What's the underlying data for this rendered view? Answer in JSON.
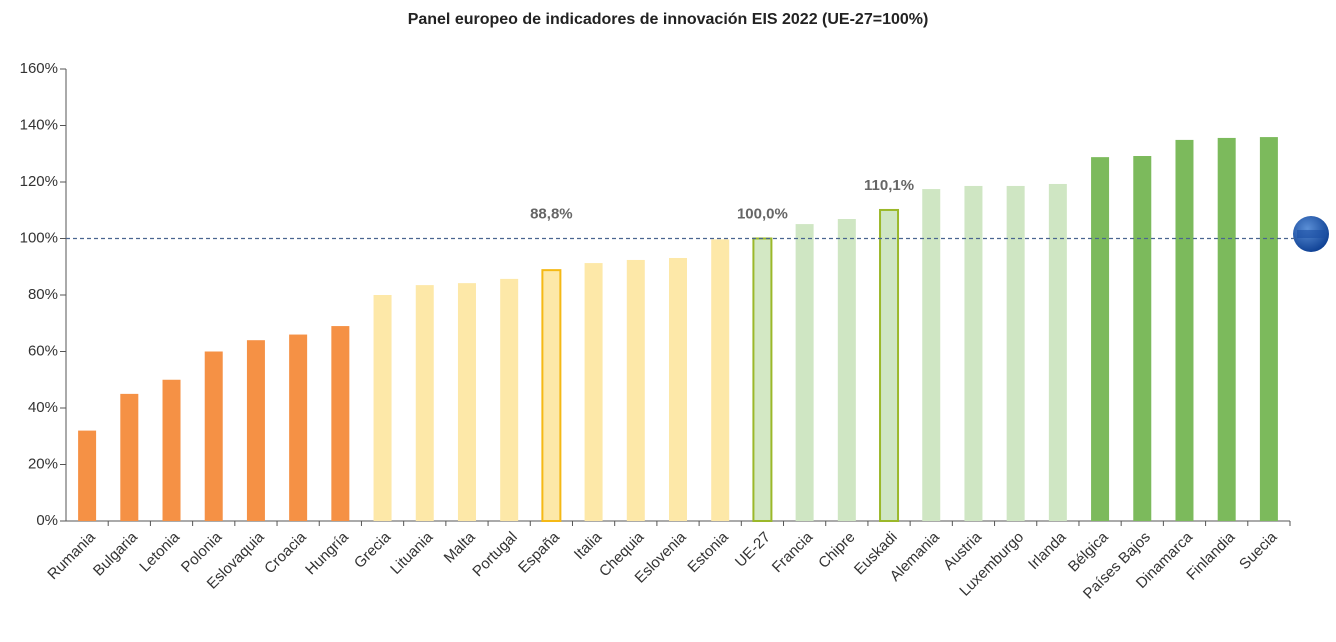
{
  "chart_data": {
    "type": "bar",
    "title": "Panel europeo de indicadores de innovación EIS 2022 (UE-27=100%)",
    "categories": [
      "Rumania",
      "Bulgaria",
      "Letonia",
      "Polonia",
      "Eslovaquia",
      "Croacia",
      "Hungría",
      "Grecia",
      "Lituania",
      "Malta",
      "Portugal",
      "España",
      "Italia",
      "Chequia",
      "Eslovenia",
      "Estonia",
      "UE-27",
      "Francia",
      "Chipre",
      "Euskadi",
      "Alemania",
      "Austria",
      "Luxemburgo",
      "Irlanda",
      "Bélgica",
      "Países Bajos",
      "Dinamarca",
      "Finlandia",
      "Suecia"
    ],
    "values": [
      32,
      45,
      50,
      60,
      64,
      66,
      69,
      80,
      83.5,
      84.2,
      85.7,
      88.8,
      91.3,
      92.4,
      93.1,
      99.7,
      100,
      105.1,
      106.9,
      110.1,
      117.5,
      118.6,
      118.6,
      119.3,
      128.8,
      129.2,
      134.9,
      135.6,
      135.9
    ],
    "value_labels": [
      null,
      null,
      null,
      null,
      null,
      null,
      null,
      null,
      null,
      null,
      null,
      "88,8%",
      null,
      null,
      null,
      null,
      "100,0%",
      null,
      null,
      "110,1%",
      null,
      null,
      null,
      null,
      null,
      null,
      null,
      null,
      null
    ],
    "colors": [
      "#f59145",
      "#f59145",
      "#f59145",
      "#f59145",
      "#f59145",
      "#f59145",
      "#f59145",
      "#fde8a8",
      "#fde8a8",
      "#fde8a8",
      "#fde8a8",
      "#fde8a8",
      "#fde8a8",
      "#fde8a8",
      "#fde8a8",
      "#fde8a8",
      "#d3e8c4",
      "#cfe6c3",
      "#cfe6c3",
      "#cfe6c3",
      "#cfe6c3",
      "#cfe6c3",
      "#cfe6c3",
      "#cfe6c3",
      "#7cba5c",
      "#7cba5c",
      "#7cba5c",
      "#7cba5c",
      "#7cba5c"
    ],
    "outline_colors": [
      null,
      null,
      null,
      null,
      null,
      null,
      null,
      null,
      null,
      null,
      null,
      "#f5b915",
      null,
      null,
      null,
      null,
      "#9bb82a",
      null,
      null,
      "#9bb82a",
      null,
      null,
      null,
      null,
      null,
      null,
      null,
      null,
      null
    ],
    "reference_line": {
      "value": 100,
      "color": "#4a6590"
    },
    "ylim": [
      0,
      160
    ],
    "yticks": [
      {
        "value": 0,
        "label": "0%"
      },
      {
        "value": 20,
        "label": "20%"
      },
      {
        "value": 40,
        "label": "40%"
      },
      {
        "value": 60,
        "label": "60%"
      },
      {
        "value": 80,
        "label": "80%"
      },
      {
        "value": 100,
        "label": "100%"
      },
      {
        "value": 120,
        "label": "120%"
      },
      {
        "value": 140,
        "label": "140%"
      },
      {
        "value": 160,
        "label": "160%"
      }
    ]
  }
}
